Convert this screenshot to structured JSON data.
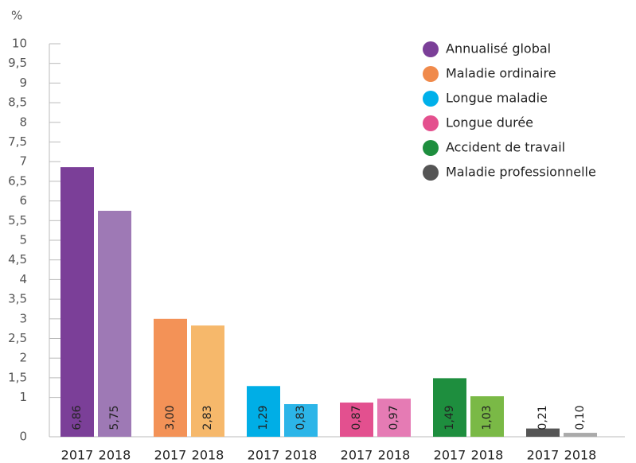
{
  "chart_data": {
    "type": "bar",
    "y_label": "%",
    "categories": [
      "2017",
      "2018"
    ],
    "series": [
      {
        "name": "Annualisé global",
        "color": "#7b3f98",
        "colors": [
          "#7b3f98",
          "#9e79b5"
        ],
        "values": [
          6.86,
          5.75
        ],
        "value_labels": [
          "6,86",
          "5,75"
        ]
      },
      {
        "name": "Maladie ordinaire",
        "color": "#f08a4b",
        "colors": [
          "#f39257",
          "#f6b86b"
        ],
        "values": [
          3.0,
          2.83
        ],
        "value_labels": [
          "3,00",
          "2,83"
        ]
      },
      {
        "name": "Longue maladie",
        "color": "#00b0ea",
        "colors": [
          "#00aee6",
          "#2cb5e8"
        ],
        "values": [
          1.29,
          0.83
        ],
        "value_labels": [
          "1,29",
          "0,83"
        ]
      },
      {
        "name": "Longue durée",
        "color": "#e4508e",
        "colors": [
          "#e3508f",
          "#e57bb4"
        ],
        "values": [
          0.87,
          0.97
        ],
        "value_labels": [
          "0,87",
          "0,97"
        ]
      },
      {
        "name": "Accident de travail",
        "color": "#1e8e3e",
        "colors": [
          "#1e8e3e",
          "#7ab946"
        ],
        "values": [
          1.49,
          1.03
        ],
        "value_labels": [
          "1,49",
          "1,03"
        ]
      },
      {
        "name": "Maladie professionnelle",
        "color": "#555555",
        "colors": [
          "#555555",
          "#aaaaaa"
        ],
        "values": [
          0.21,
          0.1
        ],
        "value_labels": [
          "0,21",
          "0,10"
        ]
      }
    ],
    "ylim": [
      0,
      10
    ],
    "yticks": [
      0,
      1,
      {
        "value": 1.5,
        "label": "1,5"
      },
      2,
      {
        "value": 2.5,
        "label": "2,5"
      },
      3,
      {
        "value": 3.5,
        "label": "3,5"
      },
      4,
      {
        "value": 4.5,
        "label": "4,5"
      },
      5,
      {
        "value": 5.5,
        "label": "5,5"
      },
      6,
      {
        "value": 6.5,
        "label": "6,5"
      },
      7,
      {
        "value": 7.5,
        "label": "7,5"
      },
      8,
      {
        "value": 8.5,
        "label": "8,5"
      },
      9,
      {
        "value": 9.5,
        "label": "9,5"
      },
      10
    ],
    "legend": "top-right"
  }
}
